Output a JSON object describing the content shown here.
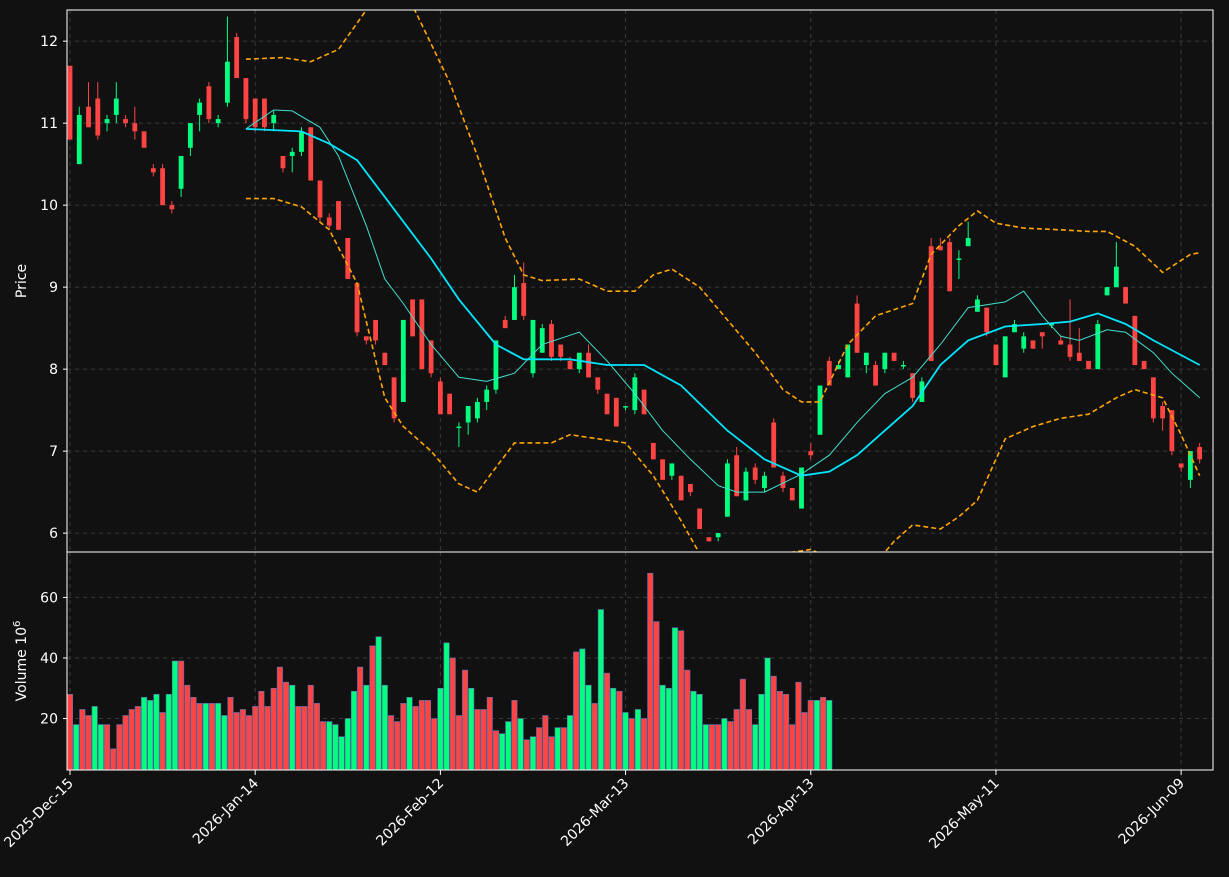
{
  "colors": {
    "background": "#111111",
    "up": "#00ff7f",
    "down": "#ff4444",
    "ma_fast": "#40e0d0",
    "ma_slow": "#00e5ff",
    "bands": "#ffa500",
    "grid": "#3a3a3a",
    "axis": "#ffffff"
  },
  "chart_data": {
    "type": "candlestick",
    "price_panel": {
      "ylabel": "Price",
      "ylim": [
        5.77,
        12.38
      ],
      "yticks": [
        6,
        7,
        8,
        9,
        10,
        11,
        12
      ],
      "grid": true
    },
    "volume_panel": {
      "ylabel": "Volume",
      "ylabel_exp": "6",
      "ylim": [
        3,
        75
      ],
      "yticks": [
        20,
        40,
        60
      ],
      "grid": true
    },
    "x_ticks": [
      {
        "label": "2025-Dec-15",
        "index": 0
      },
      {
        "label": "2026-Jan-14",
        "index": 30
      },
      {
        "label": "2026-Feb-12",
        "index": 60
      },
      {
        "label": "2026-Mar-13",
        "index": 90
      },
      {
        "label": "2026-Apr-13",
        "index": 120
      },
      {
        "label": "2026-May-11",
        "index": 150
      },
      {
        "label": "2026-Jun-09",
        "index": 180
      }
    ],
    "candles": [
      [
        0,
        11.7,
        11.7,
        10.8,
        10.8
      ],
      [
        1,
        10.5,
        11.2,
        10.5,
        11.1
      ],
      [
        2,
        11.2,
        11.5,
        10.95,
        10.95
      ],
      [
        3,
        11.3,
        11.5,
        10.8,
        10.85
      ],
      [
        4,
        11.0,
        11.1,
        10.9,
        11.05
      ],
      [
        5,
        11.1,
        11.5,
        11.0,
        11.3
      ],
      [
        6,
        11.05,
        11.1,
        10.95,
        11.0
      ],
      [
        7,
        11.0,
        11.2,
        10.8,
        10.9
      ],
      [
        8,
        10.9,
        10.9,
        10.7,
        10.7
      ],
      [
        9,
        10.45,
        10.5,
        10.35,
        10.4
      ],
      [
        10,
        10.45,
        10.5,
        10.0,
        10.0
      ],
      [
        11,
        10.0,
        10.05,
        9.9,
        9.95
      ],
      [
        12,
        10.2,
        10.6,
        10.1,
        10.6
      ],
      [
        13,
        10.7,
        11.0,
        10.6,
        11.0
      ],
      [
        14,
        11.1,
        11.3,
        10.9,
        11.25
      ],
      [
        15,
        11.45,
        11.5,
        11.0,
        11.05
      ],
      [
        16,
        11.0,
        11.1,
        10.95,
        11.05
      ],
      [
        17,
        11.25,
        12.3,
        11.2,
        11.75
      ],
      [
        18,
        12.05,
        12.1,
        11.55,
        11.55
      ],
      [
        19,
        11.55,
        11.55,
        11.0,
        11.05
      ],
      [
        20,
        11.3,
        11.3,
        10.9,
        10.95
      ],
      [
        21,
        11.3,
        11.3,
        10.9,
        10.95
      ],
      [
        22,
        11.0,
        11.15,
        10.9,
        11.1
      ],
      [
        23,
        10.6,
        10.6,
        10.4,
        10.45
      ],
      [
        24,
        10.6,
        10.7,
        10.4,
        10.65
      ],
      [
        25,
        10.65,
        10.95,
        10.6,
        10.9
      ],
      [
        26,
        10.95,
        10.95,
        10.3,
        10.3
      ],
      [
        27,
        10.3,
        10.3,
        9.8,
        9.85
      ],
      [
        28,
        9.85,
        9.9,
        9.7,
        9.75
      ],
      [
        29,
        10.05,
        10.05,
        9.7,
        9.7
      ],
      [
        30,
        9.6,
        9.6,
        9.1,
        9.1
      ],
      [
        31,
        9.05,
        9.05,
        8.4,
        8.45
      ],
      [
        32,
        8.4,
        8.4,
        8.3,
        8.35
      ],
      [
        33,
        8.6,
        8.6,
        8.3,
        8.35
      ],
      [
        34,
        8.2,
        8.2,
        8.05,
        8.05
      ],
      [
        35,
        7.9,
        7.9,
        7.35,
        7.4
      ],
      [
        36,
        7.6,
        8.6,
        7.6,
        8.6
      ],
      [
        37,
        8.85,
        8.85,
        8.4,
        8.4
      ],
      [
        38,
        8.85,
        8.85,
        8.0,
        8.0
      ],
      [
        39,
        8.35,
        8.35,
        7.9,
        7.95
      ],
      [
        40,
        7.85,
        7.9,
        7.45,
        7.45
      ],
      [
        41,
        7.7,
        7.7,
        7.45,
        7.45
      ],
      [
        42,
        7.3,
        7.35,
        7.05,
        7.3
      ],
      [
        43,
        7.35,
        7.55,
        7.2,
        7.55
      ],
      [
        44,
        7.4,
        7.65,
        7.35,
        7.6
      ],
      [
        45,
        7.6,
        7.8,
        7.5,
        7.75
      ],
      [
        46,
        7.75,
        8.35,
        7.7,
        8.35
      ],
      [
        47,
        8.6,
        8.65,
        8.5,
        8.5
      ],
      [
        48,
        8.6,
        9.15,
        8.6,
        9.0
      ],
      [
        49,
        9.05,
        9.3,
        8.6,
        8.65
      ],
      [
        50,
        7.95,
        8.6,
        7.9,
        8.6
      ],
      [
        51,
        8.2,
        8.55,
        8.2,
        8.5
      ],
      [
        52,
        8.55,
        8.6,
        8.1,
        8.15
      ],
      [
        53,
        8.3,
        8.3,
        8.1,
        8.15
      ],
      [
        54,
        8.1,
        8.15,
        8.0,
        8.0
      ],
      [
        55,
        8.0,
        8.2,
        7.95,
        8.2
      ],
      [
        56,
        8.2,
        8.3,
        7.9,
        7.9
      ],
      [
        57,
        7.9,
        7.9,
        7.7,
        7.75
      ],
      [
        58,
        7.7,
        7.7,
        7.45,
        7.45
      ],
      [
        59,
        7.65,
        7.65,
        7.3,
        7.3
      ],
      [
        60,
        7.55,
        7.55,
        7.5,
        7.55
      ],
      [
        61,
        7.5,
        7.95,
        7.45,
        7.9
      ],
      [
        62,
        7.75,
        7.75,
        7.45,
        7.45
      ],
      [
        63,
        7.1,
        7.1,
        6.9,
        6.9
      ],
      [
        64,
        6.9,
        6.9,
        6.65,
        6.65
      ],
      [
        65,
        6.7,
        6.85,
        6.65,
        6.85
      ],
      [
        66,
        6.7,
        6.7,
        6.4,
        6.4
      ],
      [
        67,
        6.6,
        6.6,
        6.45,
        6.5
      ],
      [
        68,
        6.3,
        6.3,
        6.05,
        6.05
      ],
      [
        69,
        5.95,
        5.95,
        5.9,
        5.9
      ],
      [
        70,
        5.95,
        6.0,
        5.9,
        6.0
      ],
      [
        71,
        6.2,
        6.9,
        6.2,
        6.85
      ],
      [
        72,
        6.95,
        7.05,
        6.45,
        6.45
      ],
      [
        73,
        6.4,
        6.8,
        6.4,
        6.75
      ],
      [
        74,
        6.8,
        6.85,
        6.6,
        6.65
      ],
      [
        75,
        6.55,
        6.75,
        6.5,
        6.7
      ],
      [
        76,
        7.35,
        7.4,
        6.8,
        6.8
      ],
      [
        77,
        6.7,
        6.75,
        6.5,
        6.55
      ],
      [
        78,
        6.55,
        6.55,
        6.4,
        6.4
      ],
      [
        79,
        6.3,
        6.8,
        6.3,
        6.8
      ],
      [
        80,
        7.0,
        7.1,
        6.9,
        6.95
      ],
      [
        81,
        7.2,
        7.8,
        7.2,
        7.8
      ],
      [
        82,
        8.1,
        8.15,
        7.8,
        7.8
      ],
      [
        83,
        8.0,
        8.1,
        8.0,
        8.05
      ],
      [
        84,
        7.9,
        8.3,
        7.9,
        8.3
      ],
      [
        85,
        8.8,
        8.9,
        8.2,
        8.2
      ],
      [
        86,
        8.05,
        8.2,
        7.95,
        8.2
      ],
      [
        87,
        8.05,
        8.1,
        7.8,
        7.8
      ],
      [
        88,
        8.0,
        8.2,
        7.95,
        8.2
      ],
      [
        89,
        8.2,
        8.2,
        8.1,
        8.1
      ],
      [
        90,
        8.05,
        8.1,
        8.0,
        8.05
      ],
      [
        91,
        7.95,
        7.95,
        7.6,
        7.65
      ],
      [
        92,
        7.6,
        7.9,
        7.6,
        7.85
      ],
      [
        93,
        9.5,
        9.6,
        8.1,
        8.1
      ],
      [
        94,
        9.5,
        9.6,
        9.45,
        9.45
      ],
      [
        95,
        9.55,
        9.6,
        8.95,
        8.95
      ],
      [
        96,
        9.35,
        9.45,
        9.1,
        9.35
      ],
      [
        97,
        9.5,
        9.8,
        9.5,
        9.6
      ],
      [
        98,
        8.7,
        8.9,
        8.7,
        8.85
      ],
      [
        99,
        8.75,
        8.75,
        8.4,
        8.45
      ],
      [
        100,
        8.3,
        8.3,
        8.05,
        8.05
      ],
      [
        101,
        7.9,
        8.4,
        7.9,
        8.4
      ],
      [
        102,
        8.45,
        8.6,
        8.45,
        8.55
      ],
      [
        103,
        8.25,
        8.45,
        8.2,
        8.4
      ],
      [
        104,
        8.35,
        8.35,
        8.25,
        8.25
      ],
      [
        105,
        8.45,
        8.45,
        8.25,
        8.4
      ],
      [
        106,
        8.55,
        8.55,
        8.5,
        8.55
      ],
      [
        107,
        8.35,
        8.4,
        8.3,
        8.3
      ],
      [
        108,
        8.3,
        8.85,
        8.1,
        8.15
      ],
      [
        109,
        8.2,
        8.5,
        8.1,
        8.1
      ],
      [
        110,
        8.1,
        8.1,
        8.0,
        8.0
      ],
      [
        111,
        8.0,
        8.6,
        8.0,
        8.55
      ],
      [
        112,
        8.9,
        9.0,
        8.9,
        9.0
      ],
      [
        113,
        9.0,
        9.55,
        9.0,
        9.25
      ],
      [
        114,
        9.0,
        9.0,
        8.8,
        8.8
      ],
      [
        115,
        8.65,
        8.65,
        8.05,
        8.05
      ],
      [
        116,
        8.1,
        8.1,
        8.0,
        8.0
      ],
      [
        117,
        7.9,
        7.9,
        7.35,
        7.4
      ],
      [
        118,
        7.55,
        7.6,
        7.25,
        7.4
      ],
      [
        119,
        7.5,
        7.5,
        6.95,
        7.0
      ],
      [
        120,
        6.85,
        6.85,
        6.75,
        6.8
      ],
      [
        121,
        6.65,
        7.0,
        6.55,
        7.0
      ],
      [
        122,
        7.05,
        7.1,
        6.85,
        6.9
      ]
    ],
    "volume": [
      28,
      18,
      23,
      21,
      24,
      18,
      18,
      10,
      18,
      21,
      23,
      24,
      27,
      26,
      28,
      22,
      28,
      39,
      39,
      31,
      27,
      25,
      25,
      25,
      25,
      21,
      27,
      22,
      23,
      21,
      24,
      29,
      24,
      30,
      37,
      32,
      31,
      24,
      24,
      31,
      25,
      19,
      19,
      18,
      14,
      20,
      29,
      37,
      31,
      44,
      47,
      31,
      21,
      19,
      25,
      27,
      24,
      26,
      26,
      20,
      30,
      45,
      40,
      21,
      36,
      30,
      23,
      23,
      27,
      16,
      15,
      19,
      26,
      20,
      13,
      14,
      17,
      21,
      14,
      17,
      17,
      21,
      42,
      43,
      31,
      25,
      56,
      35,
      30,
      29,
      22,
      20,
      23,
      20,
      68,
      52,
      31,
      30,
      50,
      49,
      36,
      29,
      28,
      18,
      18,
      18,
      20,
      19,
      23,
      33,
      23,
      18,
      28,
      40,
      34,
      29,
      28,
      18,
      32,
      22,
      26,
      26,
      27,
      26
    ],
    "ma_fast": [
      [
        19,
        10.93
      ],
      [
        22,
        11.16
      ],
      [
        24,
        11.15
      ],
      [
        27,
        10.95
      ],
      [
        29,
        10.6
      ],
      [
        32,
        9.75
      ],
      [
        34,
        9.1
      ],
      [
        36,
        8.8
      ],
      [
        39,
        8.3
      ],
      [
        42,
        7.9
      ],
      [
        45,
        7.85
      ],
      [
        48,
        7.95
      ],
      [
        51,
        8.3
      ],
      [
        55,
        8.45
      ],
      [
        58,
        8.1
      ],
      [
        61,
        7.7
      ],
      [
        64,
        7.25
      ],
      [
        67,
        6.9
      ],
      [
        70,
        6.58
      ],
      [
        72,
        6.5
      ],
      [
        75,
        6.5
      ],
      [
        79,
        6.72
      ],
      [
        82,
        6.95
      ],
      [
        85,
        7.35
      ],
      [
        88,
        7.7
      ],
      [
        91,
        7.9
      ],
      [
        94,
        8.3
      ],
      [
        97,
        8.75
      ],
      [
        101,
        8.82
      ],
      [
        103,
        8.95
      ],
      [
        105,
        8.65
      ],
      [
        107,
        8.4
      ],
      [
        109,
        8.35
      ],
      [
        112,
        8.48
      ],
      [
        114,
        8.45
      ],
      [
        117,
        8.2
      ],
      [
        119,
        7.95
      ],
      [
        122,
        7.65
      ]
    ],
    "ma_slow": [
      [
        19,
        10.93
      ],
      [
        25,
        10.9
      ],
      [
        28,
        10.75
      ],
      [
        31,
        10.55
      ],
      [
        35,
        9.95
      ],
      [
        39,
        9.35
      ],
      [
        42,
        8.85
      ],
      [
        46,
        8.3
      ],
      [
        49,
        8.12
      ],
      [
        54,
        8.12
      ],
      [
        58,
        8.05
      ],
      [
        62,
        8.05
      ],
      [
        66,
        7.8
      ],
      [
        71,
        7.25
      ],
      [
        75,
        6.9
      ],
      [
        79,
        6.7
      ],
      [
        82,
        6.75
      ],
      [
        85,
        6.95
      ],
      [
        88,
        7.25
      ],
      [
        91,
        7.55
      ],
      [
        94,
        8.05
      ],
      [
        97,
        8.35
      ],
      [
        101,
        8.52
      ],
      [
        105,
        8.55
      ],
      [
        108,
        8.58
      ],
      [
        111,
        8.68
      ],
      [
        114,
        8.55
      ],
      [
        117,
        8.35
      ],
      [
        122,
        8.05
      ]
    ],
    "bollinger_upper": [
      [
        19,
        11.78
      ],
      [
        23,
        11.8
      ],
      [
        26,
        11.75
      ],
      [
        29,
        11.9
      ],
      [
        32,
        12.38
      ],
      [
        35,
        12.9
      ],
      [
        38,
        12.2
      ],
      [
        41,
        11.5
      ],
      [
        44,
        10.6
      ],
      [
        47,
        9.6
      ],
      [
        49,
        9.15
      ],
      [
        51,
        9.08
      ],
      [
        55,
        9.1
      ],
      [
        58,
        8.95
      ],
      [
        61,
        8.95
      ],
      [
        63,
        9.15
      ],
      [
        65,
        9.22
      ],
      [
        68,
        9.0
      ],
      [
        71,
        8.6
      ],
      [
        74,
        8.2
      ],
      [
        77,
        7.75
      ],
      [
        79,
        7.6
      ],
      [
        81,
        7.6
      ],
      [
        84,
        8.3
      ],
      [
        87,
        8.65
      ],
      [
        91,
        8.8
      ],
      [
        93,
        9.4
      ],
      [
        96,
        9.75
      ],
      [
        98,
        9.93
      ],
      [
        100,
        9.78
      ],
      [
        103,
        9.72
      ],
      [
        107,
        9.7
      ],
      [
        110,
        9.68
      ],
      [
        112,
        9.68
      ],
      [
        115,
        9.5
      ],
      [
        118,
        9.18
      ],
      [
        121,
        9.4
      ],
      [
        122,
        9.42
      ]
    ],
    "bollinger_lower": [
      [
        19,
        10.08
      ],
      [
        22,
        10.08
      ],
      [
        25,
        9.98
      ],
      [
        28,
        9.7
      ],
      [
        31,
        9.05
      ],
      [
        34,
        7.65
      ],
      [
        36,
        7.3
      ],
      [
        39,
        7.0
      ],
      [
        42,
        6.6
      ],
      [
        44,
        6.5
      ],
      [
        46,
        6.8
      ],
      [
        48,
        7.1
      ],
      [
        52,
        7.1
      ],
      [
        54,
        7.2
      ],
      [
        57,
        7.15
      ],
      [
        60,
        7.1
      ],
      [
        63,
        6.7
      ],
      [
        66,
        6.15
      ],
      [
        69,
        5.55
      ],
      [
        72,
        5.3
      ],
      [
        74,
        5.2
      ],
      [
        77,
        5.75
      ],
      [
        80,
        5.8
      ],
      [
        83,
        5.65
      ],
      [
        86,
        5.5
      ],
      [
        89,
        5.9
      ],
      [
        91,
        6.1
      ],
      [
        94,
        6.05
      ],
      [
        96,
        6.2
      ],
      [
        98,
        6.4
      ],
      [
        101,
        7.15
      ],
      [
        104,
        7.3
      ],
      [
        107,
        7.4
      ],
      [
        110,
        7.45
      ],
      [
        113,
        7.65
      ],
      [
        115,
        7.75
      ],
      [
        118,
        7.65
      ],
      [
        120,
        7.2
      ],
      [
        122,
        6.7
      ]
    ]
  }
}
